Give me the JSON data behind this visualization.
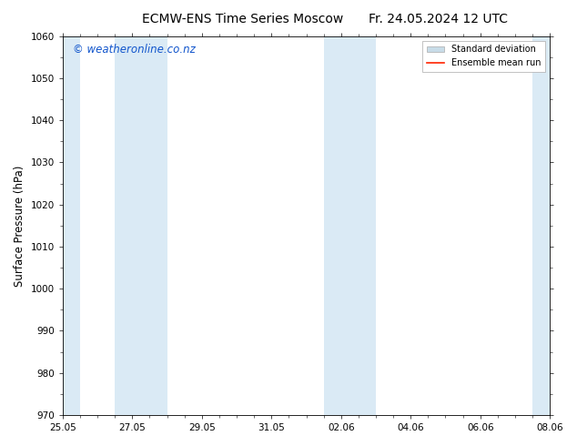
{
  "title_left": "ECMW-ENS Time Series Moscow",
  "title_right": "Fr. 24.05.2024 12 UTC",
  "ylabel": "Surface Pressure (hPa)",
  "ylim": [
    970,
    1060
  ],
  "yticks": [
    970,
    980,
    990,
    1000,
    1010,
    1020,
    1030,
    1040,
    1050,
    1060
  ],
  "xlim_start": 0.0,
  "xlim_end": 14.0,
  "xtick_labels": [
    "25.05",
    "27.05",
    "29.05",
    "31.05",
    "02.06",
    "04.06",
    "06.06",
    "08.06"
  ],
  "xtick_positions": [
    0,
    2,
    4,
    6,
    8,
    10,
    12,
    14
  ],
  "background_color": "#ffffff",
  "plot_bg_color": "#ffffff",
  "shaded_bands": [
    {
      "x_start": 0.0,
      "x_end": 0.5,
      "color": "#daeaf5"
    },
    {
      "x_start": 1.5,
      "x_end": 3.0,
      "color": "#daeaf5"
    },
    {
      "x_start": 7.5,
      "x_end": 9.0,
      "color": "#daeaf5"
    },
    {
      "x_start": 13.5,
      "x_end": 14.0,
      "color": "#daeaf5"
    }
  ],
  "watermark": "© weatheronline.co.nz",
  "watermark_color": "#1155cc",
  "watermark_fontsize": 8.5,
  "legend_std_color": "#c8dce8",
  "legend_mean_color": "#ff2200",
  "title_fontsize": 10,
  "tick_fontsize": 7.5,
  "ylabel_fontsize": 8.5
}
